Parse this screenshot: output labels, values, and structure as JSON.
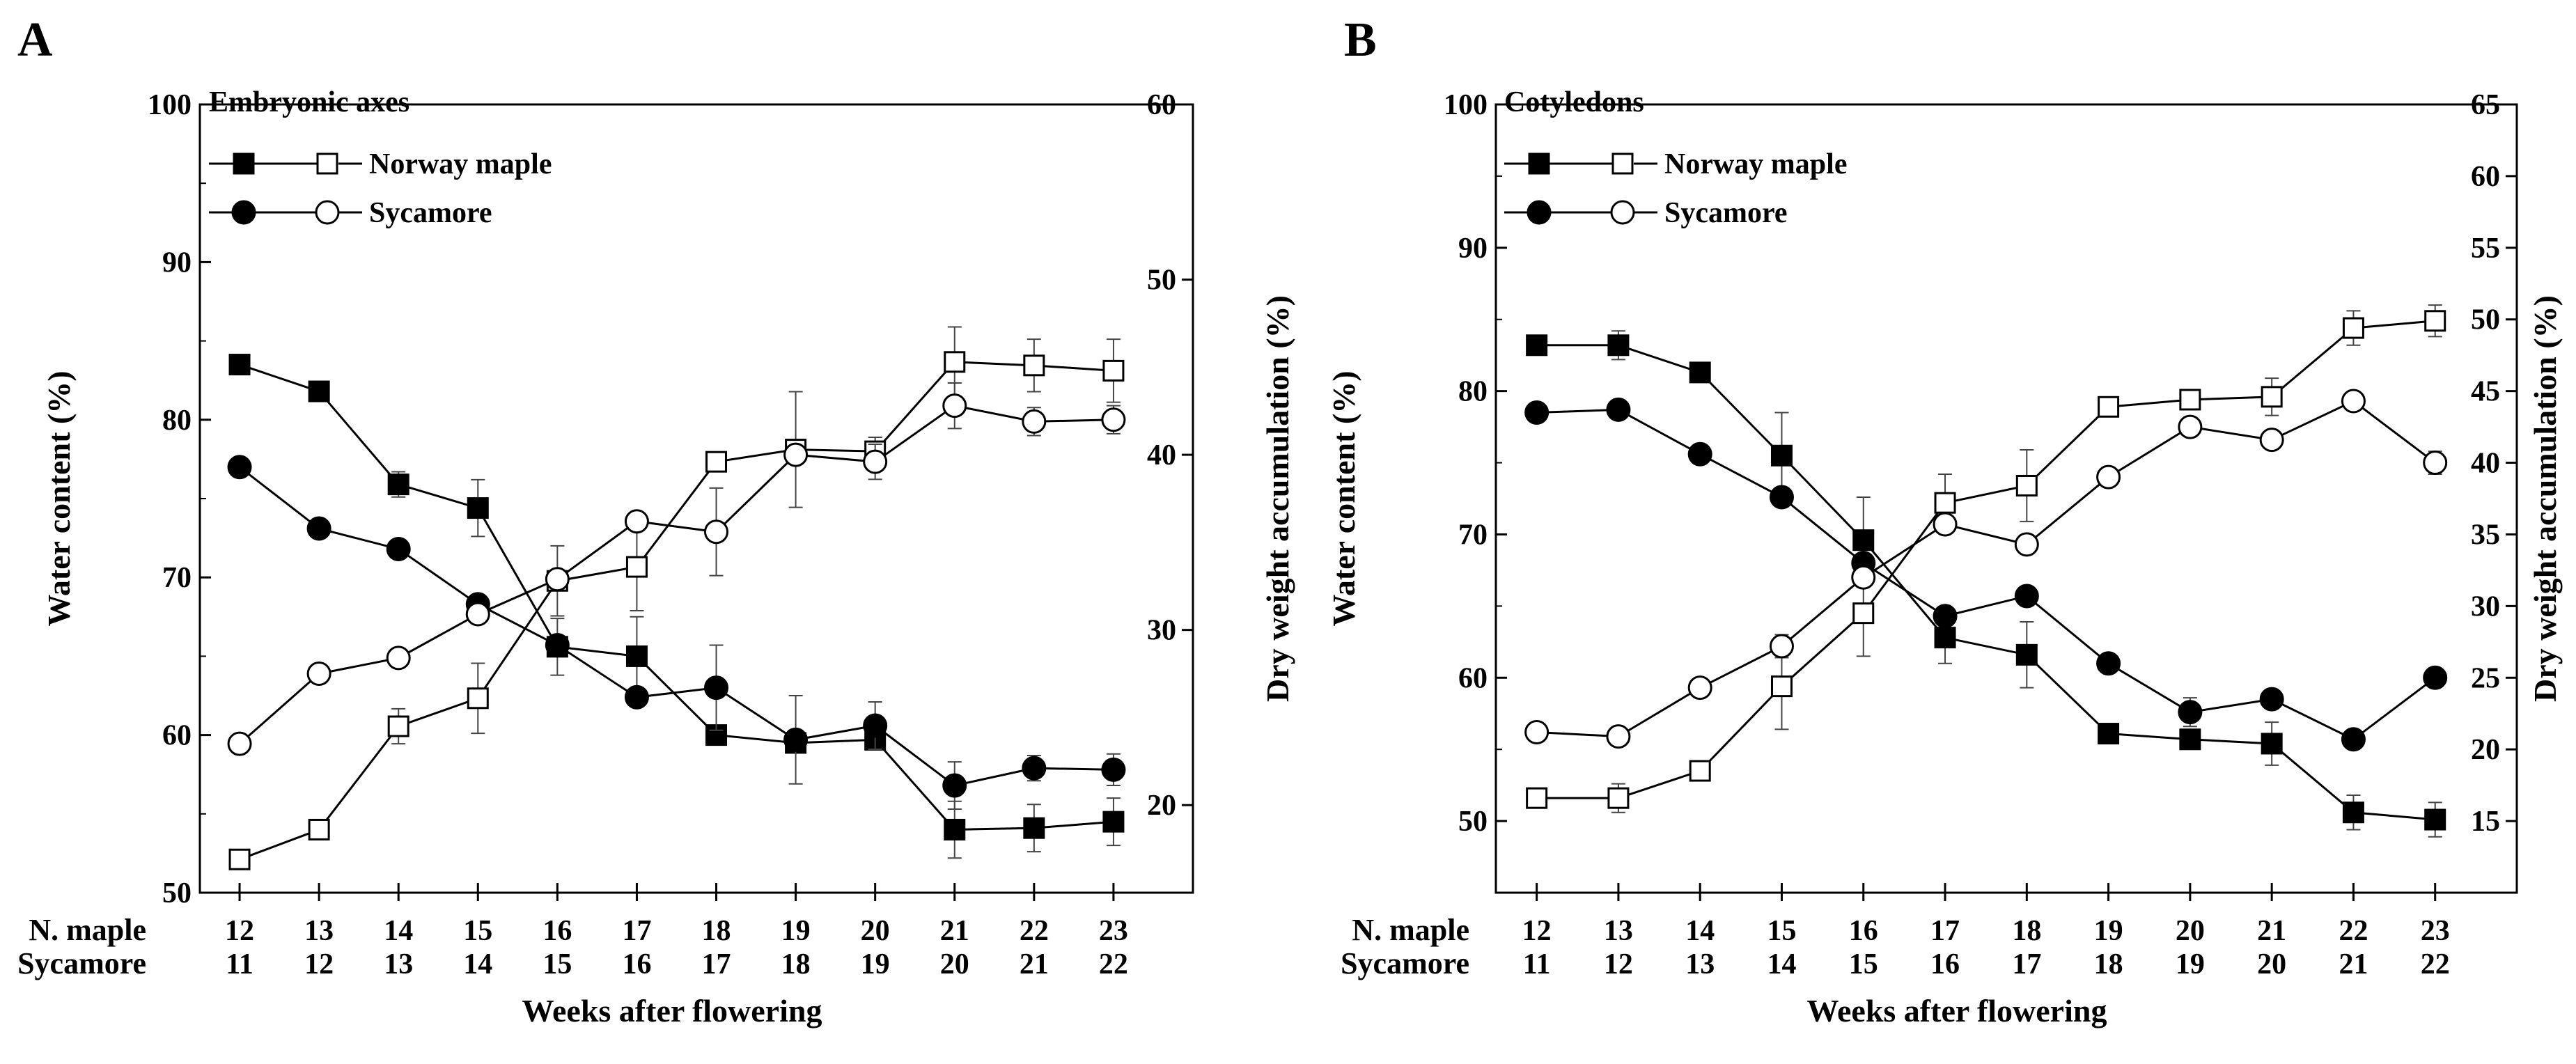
{
  "chart_data": [
    {
      "type": "line",
      "panel_label": "A",
      "title": "Embryonic axes",
      "xlabel": "Weeks after flowering",
      "ylabel_left": "Water content (%)",
      "ylabel_right": "Dry weight accumulation (%)",
      "ylim_left": [
        50,
        100
      ],
      "yticks_left": [
        50,
        60,
        70,
        80,
        90,
        100
      ],
      "ylim_right": [
        15,
        60
      ],
      "yticks_right": [
        20,
        30,
        40,
        50,
        60
      ],
      "x_row_labels": [
        "N. maple",
        "Sycamore"
      ],
      "x_norway_maple": [
        "12",
        "13",
        "14",
        "15",
        "16",
        "17",
        "18",
        "19",
        "20",
        "21",
        "22",
        "23"
      ],
      "x_sycamore": [
        "11",
        "12",
        "13",
        "14",
        "15",
        "16",
        "17",
        "18",
        "19",
        "20",
        "21",
        "22"
      ],
      "legend": [
        {
          "label": "Norway maple",
          "markers": [
            "filled-square",
            "open-square"
          ]
        },
        {
          "label": "Sycamore",
          "markers": [
            "filled-circle",
            "open-circle"
          ]
        }
      ],
      "grid": false,
      "series": [
        {
          "species": "Norway maple",
          "measure": "water content",
          "axis": "left",
          "marker": "filled-square",
          "values": [
            83.5,
            81.8,
            75.9,
            74.4,
            65.6,
            65.0,
            60.0,
            59.5,
            59.7,
            54.0,
            54.1,
            54.5
          ],
          "errors": [
            0,
            0,
            0.8,
            1.8,
            1.8,
            2.5,
            0,
            0,
            0,
            1.8,
            1.5,
            1.5
          ]
        },
        {
          "species": "Sycamore",
          "measure": "water content",
          "axis": "left",
          "marker": "filled-circle",
          "values": [
            77.0,
            73.1,
            71.8,
            68.3,
            65.7,
            62.4,
            63.0,
            59.7,
            60.6,
            56.8,
            57.9,
            57.8
          ],
          "errors": [
            0,
            0,
            0,
            0.5,
            0,
            0,
            2.7,
            2.8,
            1.5,
            1.5,
            0.8,
            1.0
          ]
        },
        {
          "species": "Norway maple",
          "measure": "dry weight accumulation",
          "axis": "right",
          "marker": "open-square",
          "values": [
            16.9,
            18.6,
            24.5,
            26.1,
            32.8,
            33.6,
            39.6,
            40.3,
            40.2,
            45.3,
            45.1,
            44.8
          ],
          "errors": [
            0,
            0,
            1.0,
            2.0,
            2.0,
            2.5,
            0,
            3.3,
            0.8,
            2.0,
            1.5,
            1.8
          ]
        },
        {
          "species": "Sycamore",
          "measure": "dry weight accumulation",
          "axis": "right",
          "marker": "open-circle",
          "values": [
            23.5,
            27.5,
            28.4,
            30.9,
            32.9,
            36.2,
            35.6,
            40.0,
            39.6,
            42.8,
            41.9,
            42.0
          ],
          "errors": [
            0.5,
            0.5,
            0,
            0.5,
            0,
            0.5,
            2.5,
            0,
            1.0,
            1.3,
            0.8,
            0.8
          ]
        }
      ]
    },
    {
      "type": "line",
      "panel_label": "B",
      "title": "Cotyledons",
      "xlabel": "Weeks after flowering",
      "ylabel_left": "Water content (%)",
      "ylabel_right": "Dry weight accumulation (%)",
      "ylim_left": [
        45,
        100
      ],
      "yticks_left": [
        50,
        60,
        70,
        80,
        90,
        100
      ],
      "ylim_right": [
        10,
        65
      ],
      "yticks_right": [
        15,
        20,
        25,
        30,
        35,
        40,
        45,
        50,
        55,
        60,
        65
      ],
      "x_row_labels": [
        "N. maple",
        "Sycamore"
      ],
      "x_norway_maple": [
        "12",
        "13",
        "14",
        "15",
        "16",
        "17",
        "18",
        "19",
        "20",
        "21",
        "22",
        "23"
      ],
      "x_sycamore": [
        "11",
        "12",
        "13",
        "14",
        "15",
        "16",
        "17",
        "18",
        "19",
        "20",
        "21",
        "22"
      ],
      "legend": [
        {
          "label": "Norway maple",
          "markers": [
            "filled-square",
            "open-square"
          ]
        },
        {
          "label": "Sycamore",
          "markers": [
            "filled-circle",
            "open-circle"
          ]
        }
      ],
      "grid": false,
      "series": [
        {
          "species": "Norway maple",
          "measure": "water content",
          "axis": "left",
          "marker": "filled-square",
          "values": [
            83.2,
            83.2,
            81.3,
            75.5,
            69.6,
            62.8,
            61.6,
            56.1,
            55.7,
            55.4,
            50.6,
            50.1
          ],
          "errors": [
            0,
            1.0,
            0,
            3.0,
            3.0,
            1.8,
            2.3,
            0,
            0,
            1.5,
            1.2,
            1.2
          ]
        },
        {
          "species": "Sycamore",
          "measure": "water content",
          "axis": "left",
          "marker": "filled-circle",
          "values": [
            78.5,
            78.7,
            75.6,
            72.6,
            68.0,
            64.3,
            65.7,
            61.0,
            57.6,
            58.5,
            55.7,
            60.0
          ],
          "errors": [
            0,
            0,
            0,
            0.5,
            0.5,
            0,
            0,
            0,
            1.0,
            0,
            0,
            0.5
          ]
        },
        {
          "species": "Norway maple",
          "measure": "dry weight accumulation",
          "axis": "right",
          "marker": "open-square",
          "values": [
            16.6,
            16.6,
            18.5,
            24.4,
            29.5,
            37.2,
            38.4,
            43.9,
            44.4,
            44.6,
            49.4,
            49.9
          ],
          "errors": [
            0,
            1.0,
            0,
            3.0,
            3.0,
            2.0,
            2.5,
            0,
            0.6,
            1.3,
            1.2,
            1.1
          ]
        },
        {
          "species": "Sycamore",
          "measure": "dry weight accumulation",
          "axis": "right",
          "marker": "open-circle",
          "values": [
            21.2,
            20.9,
            24.3,
            27.2,
            32.0,
            35.7,
            34.3,
            39.0,
            42.5,
            41.6,
            44.3,
            40.0
          ],
          "errors": [
            0,
            0,
            0,
            0.8,
            0,
            0.6,
            0.5,
            0,
            0,
            0.6,
            0,
            0.8
          ]
        }
      ]
    }
  ]
}
